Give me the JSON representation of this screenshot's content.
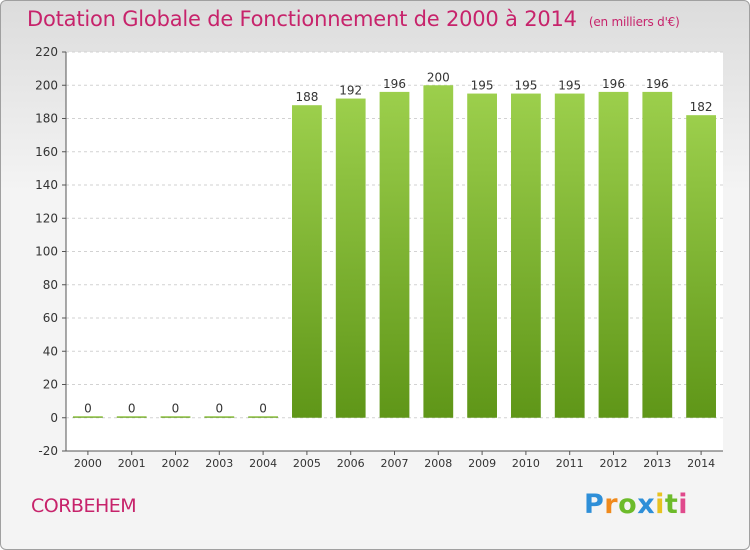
{
  "title": "Dotation Globale de Fonctionnement de 2000 à 2014",
  "subtitle": "(en milliers d'€)",
  "commune": "CORBEHEM",
  "logo": {
    "text": "Proxiti",
    "letters": [
      {
        "char": "P",
        "color": "#2e8fd8"
      },
      {
        "char": "r",
        "color": "#f08a1c"
      },
      {
        "char": "o",
        "color": "#6dbb2a"
      },
      {
        "char": "x",
        "color": "#2e8fd8"
      },
      {
        "char": "i",
        "color": "#e8c220"
      },
      {
        "char": "t",
        "color": "#6dbb2a"
      },
      {
        "char": "i",
        "color": "#e04a8c"
      }
    ]
  },
  "chart_data": {
    "type": "bar",
    "categories": [
      "2000",
      "2001",
      "2002",
      "2003",
      "2004",
      "2005",
      "2006",
      "2007",
      "2008",
      "2009",
      "2010",
      "2011",
      "2012",
      "2013",
      "2014"
    ],
    "values": [
      0,
      0,
      0,
      0,
      0,
      188,
      192,
      196,
      200,
      195,
      195,
      195,
      196,
      196,
      182
    ],
    "ylim": [
      -20,
      220
    ],
    "yticks": [
      -20,
      0,
      20,
      40,
      60,
      80,
      100,
      120,
      140,
      160,
      180,
      200,
      220
    ],
    "grid": true,
    "bar_color_top": "#9ccf4c",
    "bar_color_bottom": "#5f9618",
    "title_color": "#c7236b"
  }
}
